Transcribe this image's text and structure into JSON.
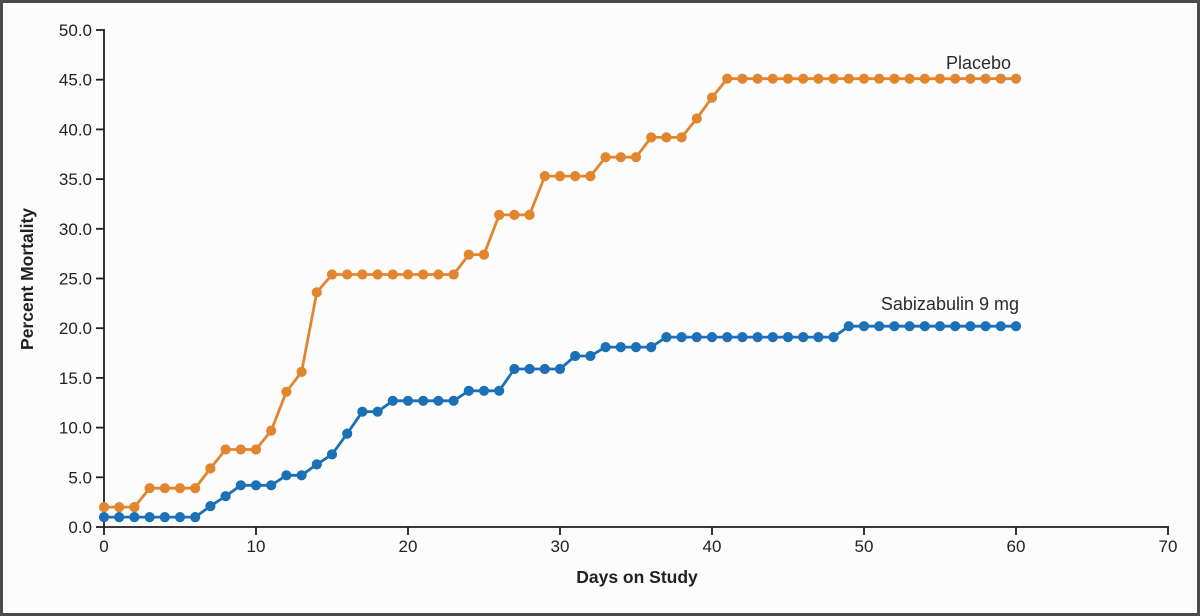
{
  "figure": {
    "background_color": "#FCFCFC",
    "border_color": "#4A4A4A",
    "text_color": "#231F20"
  },
  "chart_data": {
    "type": "line",
    "title": "",
    "xlabel": "Days on Study",
    "ylabel": "Percent Mortality",
    "x_range": [
      0,
      70
    ],
    "y_range": [
      0,
      50
    ],
    "x_ticks": [
      "0",
      "10",
      "20",
      "30",
      "40",
      "50",
      "60",
      "70"
    ],
    "y_ticks": [
      "0.0",
      "5.0",
      "10.0",
      "15.0",
      "20.0",
      "25.0",
      "30.0",
      "35.0",
      "40.0",
      "45.0",
      "50.0"
    ],
    "grid": false,
    "markers": "circle-every-day",
    "legend_position": "inline-right-of-curves",
    "series": [
      {
        "name": "Placebo",
        "color": "#E1862F",
        "x": [
          0,
          1,
          2,
          3,
          4,
          5,
          6,
          7,
          8,
          9,
          10,
          11,
          12,
          13,
          14,
          15,
          16,
          17,
          18,
          19,
          20,
          21,
          22,
          23,
          24,
          25,
          26,
          27,
          28,
          29,
          30,
          31,
          32,
          33,
          34,
          35,
          36,
          37,
          38,
          39,
          40,
          41,
          42,
          43,
          44,
          45,
          46,
          47,
          48,
          49,
          50,
          51,
          52,
          53,
          54,
          55,
          56,
          57,
          58,
          59,
          60
        ],
        "values": [
          2.0,
          2.0,
          2.0,
          3.9,
          3.9,
          3.9,
          3.9,
          5.9,
          7.8,
          7.8,
          7.8,
          9.7,
          13.6,
          15.6,
          23.6,
          25.4,
          25.4,
          25.4,
          25.4,
          25.4,
          25.4,
          25.4,
          25.4,
          25.4,
          27.4,
          27.4,
          31.4,
          31.4,
          31.4,
          35.3,
          35.3,
          35.3,
          35.3,
          37.2,
          37.2,
          37.2,
          39.2,
          39.2,
          39.2,
          41.1,
          43.2,
          45.1,
          45.1,
          45.1,
          45.1,
          45.1,
          45.1,
          45.1,
          45.1,
          45.1,
          45.1,
          45.1,
          45.1,
          45.1,
          45.1,
          45.1,
          45.1,
          45.1,
          45.1,
          45.1,
          45.1
        ]
      },
      {
        "name": "Sabizabulin 9 mg",
        "color": "#1B70B6",
        "x": [
          0,
          1,
          2,
          3,
          4,
          5,
          6,
          7,
          8,
          9,
          10,
          11,
          12,
          13,
          14,
          15,
          16,
          17,
          18,
          19,
          20,
          21,
          22,
          23,
          24,
          25,
          26,
          27,
          28,
          29,
          30,
          31,
          32,
          33,
          34,
          35,
          36,
          37,
          38,
          39,
          40,
          41,
          42,
          43,
          44,
          45,
          46,
          47,
          48,
          49,
          50,
          51,
          52,
          53,
          54,
          55,
          56,
          57,
          58,
          59,
          60
        ],
        "values": [
          1.0,
          1.0,
          1.0,
          1.0,
          1.0,
          1.0,
          1.0,
          2.1,
          3.1,
          4.2,
          4.2,
          4.2,
          5.2,
          5.2,
          6.3,
          7.3,
          9.4,
          11.6,
          11.6,
          12.7,
          12.7,
          12.7,
          12.7,
          12.7,
          13.7,
          13.7,
          13.7,
          15.9,
          15.9,
          15.9,
          15.9,
          17.2,
          17.2,
          18.1,
          18.1,
          18.1,
          18.1,
          19.1,
          19.1,
          19.1,
          19.1,
          19.1,
          19.1,
          19.1,
          19.1,
          19.1,
          19.1,
          19.1,
          19.1,
          20.2,
          20.2,
          20.2,
          20.2,
          20.2,
          20.2,
          20.2,
          20.2,
          20.2,
          20.2,
          20.2,
          20.2
        ]
      }
    ]
  }
}
